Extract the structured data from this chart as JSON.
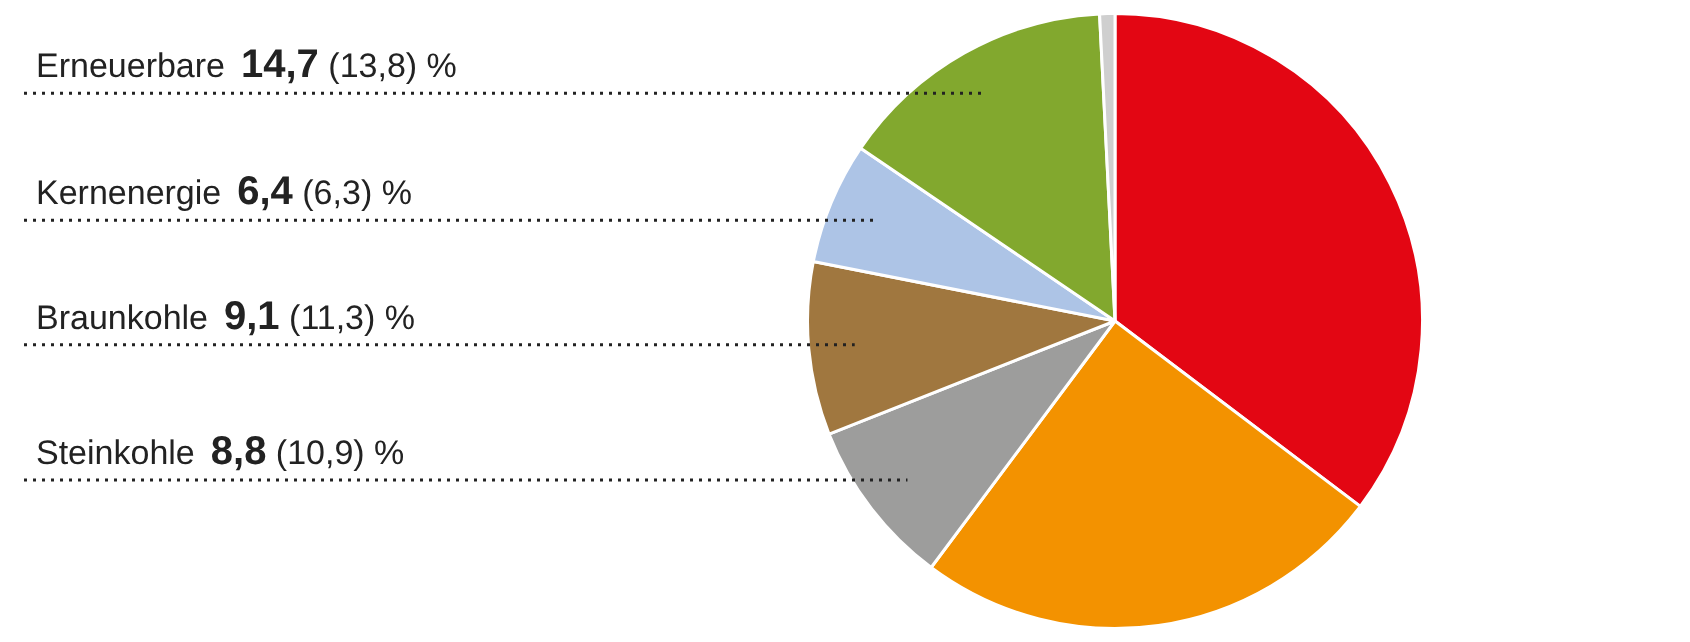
{
  "chart_data": {
    "type": "pie",
    "categories": [
      null,
      null,
      "Steinkohle",
      "Braunkohle",
      "Kernenergie",
      "Erneuerbare",
      null
    ],
    "values": [
      35.3,
      24.9,
      8.8,
      9.1,
      6.4,
      14.7,
      0.8
    ],
    "colors": [
      "#e30613",
      "#f39200",
      "#9d9d9c",
      "#a0773f",
      "#adc4e6",
      "#82a82e",
      "#cfcfcf"
    ],
    "value_labels": [
      null,
      null,
      "8,8 (10,9) %",
      "9,1 (11,3) %",
      "6,4 (6,3) %",
      "14,7 (13,8) %",
      null
    ]
  }
}
